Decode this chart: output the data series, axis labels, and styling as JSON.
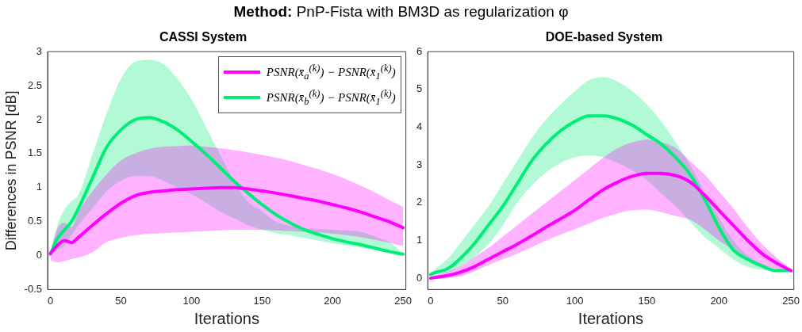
{
  "chart_data": [
    {
      "type": "other",
      "title": "Method: PnP-Fista with BM3D as regularization φ"
    },
    {
      "type": "line",
      "title": "CASSI System",
      "xlabel": "Iterations",
      "ylabel": "Differences in PSNR [dB]",
      "xlim": [
        -2,
        252
      ],
      "ylim": [
        -0.5,
        3
      ],
      "xticks": [
        0,
        50,
        100,
        150,
        200,
        250
      ],
      "yticks": [
        -0.5,
        0,
        0.5,
        1,
        1.5,
        2,
        2.5,
        3
      ],
      "grid": false,
      "legend": "top right",
      "marker": "none",
      "line_style": "solid",
      "x": [
        0,
        5,
        10,
        15,
        20,
        30,
        40,
        50,
        60,
        70,
        80,
        90,
        100,
        110,
        120,
        130,
        140,
        150,
        160,
        170,
        180,
        190,
        200,
        210,
        220,
        230,
        240,
        250
      ],
      "series": [
        {
          "name": "PSNR(x̄$_{a}$$^{(k)}$) − PSNR(x̄$_{1}$$^{(k)}$)",
          "color": "#ff00ff",
          "values": [
            0.03,
            0.15,
            0.22,
            0.19,
            0.27,
            0.45,
            0.62,
            0.77,
            0.88,
            0.93,
            0.95,
            0.97,
            0.98,
            0.99,
            1.0,
            1.0,
            0.98,
            0.95,
            0.92,
            0.88,
            0.84,
            0.8,
            0.75,
            0.7,
            0.64,
            0.57,
            0.5,
            0.41
          ],
          "upper": [
            0.05,
            0.4,
            0.48,
            0.42,
            0.65,
            0.95,
            1.2,
            1.4,
            1.5,
            1.57,
            1.6,
            1.61,
            1.62,
            1.6,
            1.58,
            1.55,
            1.52,
            1.48,
            1.44,
            1.39,
            1.33,
            1.27,
            1.2,
            1.12,
            1.03,
            0.93,
            0.82,
            0.72
          ],
          "lower": [
            -0.07,
            -0.1,
            -0.08,
            -0.05,
            -0.03,
            0.05,
            0.2,
            0.26,
            0.3,
            0.32,
            0.33,
            0.34,
            0.35,
            0.36,
            0.37,
            0.38,
            0.38,
            0.38,
            0.37,
            0.36,
            0.35,
            0.34,
            0.32,
            0.3,
            0.27,
            0.23,
            0.19,
            0.14
          ]
        },
        {
          "name": "PSNR(x̄$_{b}$$^{(k)}$) − PSNR(x̄$_{1}$$^{(k)}$)",
          "color": "#00ee77",
          "values": [
            0.02,
            0.25,
            0.38,
            0.5,
            0.7,
            1.15,
            1.6,
            1.85,
            2.0,
            2.03,
            1.97,
            1.85,
            1.68,
            1.5,
            1.3,
            1.1,
            0.92,
            0.75,
            0.6,
            0.48,
            0.38,
            0.31,
            0.25,
            0.2,
            0.16,
            0.11,
            0.06,
            0.02
          ],
          "upper": [
            0.05,
            0.45,
            0.68,
            0.8,
            0.9,
            1.5,
            2.1,
            2.6,
            2.85,
            2.88,
            2.82,
            2.6,
            2.3,
            1.9,
            1.5,
            1.1,
            0.8,
            0.65,
            0.5,
            0.44,
            0.4,
            0.39,
            0.38,
            0.37,
            0.35,
            0.28,
            0.2,
            0.03
          ],
          "lower": [
            0.0,
            0.08,
            0.15,
            0.3,
            0.45,
            0.7,
            0.95,
            1.1,
            1.17,
            1.17,
            1.1,
            1.0,
            0.9,
            0.78,
            0.65,
            0.55,
            0.45,
            0.38,
            0.33,
            0.3,
            0.26,
            0.22,
            0.18,
            0.15,
            0.12,
            0.08,
            0.05,
            0.0
          ]
        }
      ]
    },
    {
      "type": "line",
      "title": "DOE-based System",
      "xlabel": "Iterations",
      "xlim": [
        -2,
        252
      ],
      "ylim": [
        -0.3,
        6
      ],
      "xticks": [
        0,
        50,
        100,
        150,
        200,
        250
      ],
      "yticks": [
        0,
        1,
        2,
        3,
        4,
        5,
        6
      ],
      "grid": false,
      "marker": "none",
      "line_style": "solid",
      "x": [
        0,
        5,
        10,
        15,
        20,
        30,
        40,
        50,
        60,
        70,
        80,
        90,
        100,
        110,
        120,
        130,
        140,
        150,
        160,
        170,
        180,
        190,
        200,
        210,
        220,
        230,
        240,
        250
      ],
      "series": [
        {
          "color": "#ff00ff",
          "values": [
            0.0,
            0.03,
            0.06,
            0.1,
            0.15,
            0.3,
            0.5,
            0.7,
            0.9,
            1.12,
            1.35,
            1.57,
            1.8,
            2.08,
            2.35,
            2.55,
            2.7,
            2.78,
            2.78,
            2.72,
            2.55,
            2.2,
            1.8,
            1.4,
            1.0,
            0.65,
            0.4,
            0.2
          ],
          "upper": [
            0.05,
            0.1,
            0.15,
            0.22,
            0.3,
            0.55,
            0.8,
            1.1,
            1.4,
            1.7,
            2.0,
            2.3,
            2.6,
            2.9,
            3.2,
            3.45,
            3.6,
            3.67,
            3.6,
            3.45,
            3.1,
            2.75,
            2.3,
            1.85,
            1.35,
            0.9,
            0.55,
            0.25
          ],
          "lower": [
            -0.02,
            -0.01,
            0.0,
            0.02,
            0.05,
            0.18,
            0.35,
            0.5,
            0.65,
            0.82,
            1.0,
            1.15,
            1.3,
            1.45,
            1.6,
            1.72,
            1.8,
            1.82,
            1.75,
            1.65,
            1.55,
            1.3,
            1.0,
            0.75,
            0.5,
            0.35,
            0.25,
            0.2
          ]
        },
        {
          "color": "#00ee77",
          "values": [
            0.1,
            0.17,
            0.22,
            0.33,
            0.5,
            0.9,
            1.4,
            1.9,
            2.5,
            3.1,
            3.55,
            3.9,
            4.15,
            4.3,
            4.3,
            4.22,
            4.05,
            3.8,
            3.55,
            3.2,
            2.75,
            2.1,
            1.35,
            0.75,
            0.5,
            0.32,
            0.2,
            0.2
          ],
          "upper": [
            0.15,
            0.3,
            0.45,
            0.65,
            0.9,
            1.4,
            1.9,
            2.5,
            3.1,
            3.7,
            4.2,
            4.6,
            4.95,
            5.25,
            5.33,
            5.2,
            4.95,
            4.6,
            4.15,
            3.6,
            3.0,
            2.3,
            1.6,
            1.0,
            0.6,
            0.38,
            0.25,
            0.2
          ],
          "lower": [
            0.08,
            0.1,
            0.13,
            0.2,
            0.3,
            0.55,
            0.9,
            1.4,
            2.0,
            2.45,
            2.8,
            3.05,
            3.2,
            3.25,
            3.2,
            3.05,
            2.85,
            2.6,
            2.25,
            1.9,
            1.5,
            1.1,
            0.8,
            0.5,
            0.3,
            0.22,
            0.2,
            0.2
          ]
        }
      ]
    }
  ]
}
